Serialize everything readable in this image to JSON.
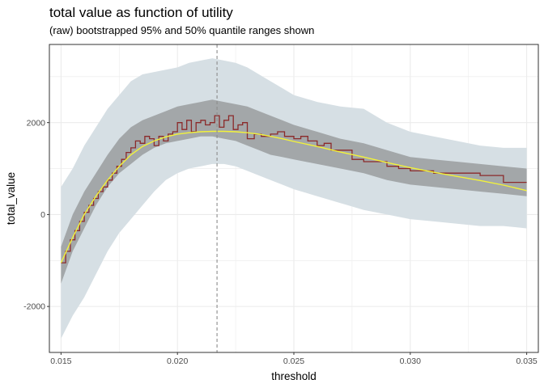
{
  "chart_data": {
    "type": "area",
    "title": "total value as function of utility",
    "subtitle": "(raw) bootstrapped 95% and 50% quantile ranges shown",
    "xlabel": "threshold",
    "ylabel": "total_value",
    "xlim": [
      0.0145,
      0.0355
    ],
    "ylim": [
      -3000,
      3700
    ],
    "x_ticks": [
      0.015,
      0.02,
      0.025,
      0.03,
      0.035
    ],
    "x_tick_labels": [
      "0.015",
      "0.020",
      "0.025",
      "0.030",
      "0.035"
    ],
    "y_ticks": [
      -2000,
      0,
      2000
    ],
    "y_tick_labels": [
      "-2000",
      "0",
      "2000"
    ],
    "grid": true,
    "vline_x": 0.0217,
    "colors": {
      "band95": "#d6dfe4",
      "band50": "#a3a7a9",
      "raw_line": "#8b2a2a",
      "smooth_line": "#f2f23a",
      "vline": "#8c8c8c",
      "grid": "#ebebeb",
      "panel_border": "#333333"
    },
    "series": [
      {
        "kind": "band95",
        "x": [
          0.015,
          0.0155,
          0.016,
          0.0165,
          0.017,
          0.0175,
          0.018,
          0.0185,
          0.019,
          0.0195,
          0.02,
          0.0205,
          0.021,
          0.0215,
          0.022,
          0.0225,
          0.023,
          0.0235,
          0.024,
          0.0245,
          0.025,
          0.026,
          0.027,
          0.028,
          0.029,
          0.03,
          0.031,
          0.032,
          0.033,
          0.034,
          0.035
        ],
        "lower": [
          -2700,
          -2200,
          -1800,
          -1300,
          -800,
          -400,
          -100,
          200,
          500,
          750,
          900,
          1000,
          1050,
          1100,
          1100,
          1050,
          950,
          850,
          750,
          650,
          550,
          400,
          250,
          100,
          0,
          -100,
          -150,
          -200,
          -250,
          -250,
          -300
        ],
        "upper": [
          600,
          1000,
          1500,
          1900,
          2300,
          2600,
          2900,
          3050,
          3100,
          3150,
          3200,
          3300,
          3350,
          3400,
          3350,
          3300,
          3200,
          3050,
          2900,
          2750,
          2600,
          2450,
          2350,
          2300,
          2000,
          1800,
          1700,
          1600,
          1500,
          1450,
          1450
        ]
      },
      {
        "kind": "band50",
        "x": [
          0.015,
          0.0155,
          0.016,
          0.0165,
          0.017,
          0.0175,
          0.018,
          0.0185,
          0.019,
          0.0195,
          0.02,
          0.0205,
          0.021,
          0.0215,
          0.022,
          0.0225,
          0.023,
          0.0235,
          0.024,
          0.0245,
          0.025,
          0.026,
          0.027,
          0.028,
          0.029,
          0.03,
          0.031,
          0.032,
          0.033,
          0.034,
          0.035
        ],
        "lower": [
          -1500,
          -800,
          -300,
          200,
          600,
          900,
          1100,
          1300,
          1450,
          1550,
          1600,
          1650,
          1700,
          1700,
          1650,
          1600,
          1500,
          1400,
          1300,
          1250,
          1200,
          1100,
          1000,
          900,
          750,
          650,
          600,
          550,
          500,
          450,
          400
        ],
        "upper": [
          -700,
          0,
          500,
          900,
          1300,
          1650,
          1900,
          2050,
          2150,
          2250,
          2350,
          2400,
          2450,
          2500,
          2450,
          2400,
          2350,
          2250,
          2150,
          2050,
          1950,
          1800,
          1650,
          1550,
          1400,
          1250,
          1200,
          1150,
          1100,
          1050,
          1000
        ]
      },
      {
        "kind": "raw_line",
        "x": [
          0.015,
          0.0152,
          0.0154,
          0.0156,
          0.0158,
          0.016,
          0.0162,
          0.0164,
          0.0166,
          0.0168,
          0.017,
          0.0172,
          0.0174,
          0.0176,
          0.0178,
          0.018,
          0.0182,
          0.0184,
          0.0186,
          0.0188,
          0.019,
          0.0192,
          0.0194,
          0.0196,
          0.0198,
          0.02,
          0.0202,
          0.0204,
          0.0206,
          0.0208,
          0.021,
          0.0212,
          0.0214,
          0.0216,
          0.0218,
          0.022,
          0.0222,
          0.0224,
          0.0226,
          0.0228,
          0.023,
          0.0233,
          0.0236,
          0.024,
          0.0243,
          0.0246,
          0.025,
          0.0253,
          0.0256,
          0.026,
          0.0263,
          0.0266,
          0.027,
          0.0275,
          0.028,
          0.0285,
          0.029,
          0.0295,
          0.03,
          0.031,
          0.032,
          0.033,
          0.034,
          0.035
        ],
        "y": [
          -1050,
          -800,
          -550,
          -350,
          -150,
          50,
          200,
          350,
          500,
          600,
          750,
          900,
          1050,
          1200,
          1350,
          1450,
          1600,
          1550,
          1700,
          1650,
          1500,
          1700,
          1600,
          1750,
          1800,
          2000,
          1850,
          2050,
          1800,
          2000,
          2050,
          1950,
          2000,
          2150,
          1900,
          2050,
          2150,
          1850,
          1950,
          2000,
          1650,
          1750,
          1700,
          1750,
          1800,
          1700,
          1650,
          1700,
          1600,
          1500,
          1550,
          1400,
          1400,
          1200,
          1150,
          1150,
          1050,
          1000,
          950,
          900,
          900,
          850,
          700,
          700
        ]
      },
      {
        "kind": "smooth_line",
        "x": [
          0.015,
          0.0155,
          0.016,
          0.0165,
          0.017,
          0.0175,
          0.018,
          0.0185,
          0.019,
          0.0195,
          0.02,
          0.0205,
          0.021,
          0.0215,
          0.022,
          0.0225,
          0.023,
          0.0235,
          0.024,
          0.0245,
          0.025,
          0.026,
          0.027,
          0.028,
          0.029,
          0.03,
          0.031,
          0.032,
          0.033,
          0.034,
          0.035
        ],
        "y": [
          -1050,
          -500,
          0,
          400,
          750,
          1050,
          1300,
          1480,
          1600,
          1690,
          1750,
          1780,
          1800,
          1810,
          1810,
          1800,
          1780,
          1750,
          1700,
          1650,
          1590,
          1480,
          1360,
          1250,
          1130,
          1020,
          920,
          830,
          740,
          640,
          520
        ]
      }
    ]
  }
}
